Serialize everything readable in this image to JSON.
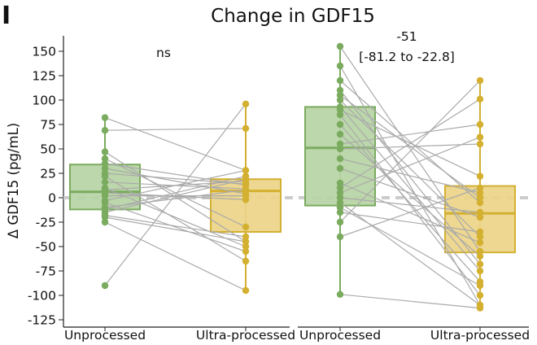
{
  "panel_label": "I",
  "chart_data": {
    "type": "box",
    "title": "Change in GDF15",
    "ylabel": "Δ GDF15 (pg/mL)",
    "ylim": [
      -125,
      160
    ],
    "yticks": [
      150,
      125,
      100,
      75,
      50,
      25,
      0,
      -25,
      -50,
      -75,
      -100,
      -125
    ],
    "reference_line_y": 0,
    "grid": false,
    "colors": {
      "unprocessed_fill": "#b6d4a4",
      "unprocessed_edge": "#7aab5e",
      "unprocessed_point": "#7aab5e",
      "ultra_fill": "#ecd488",
      "ultra_edge": "#d4b030",
      "ultra_point": "#d4b030",
      "pair_line": "#aaaaaa",
      "reference_line": "#cccccc"
    },
    "panels": [
      {
        "categories": [
          "Unprocessed",
          "Ultra-processed"
        ],
        "annotation": [
          "ns"
        ],
        "boxes": [
          {
            "name": "Unprocessed",
            "q1": -12,
            "median": 6,
            "q3": 34,
            "whisker_low": -25,
            "whisker_high": 82
          },
          {
            "name": "Ultra-processed",
            "q1": -35,
            "median": 7,
            "q3": 19,
            "whisker_low": -95,
            "whisker_high": 96
          }
        ],
        "pairs": [
          [
            82,
            28
          ],
          [
            -90,
            96
          ],
          [
            69,
            71
          ],
          [
            47,
            -45
          ],
          [
            40,
            -30
          ],
          [
            35,
            13
          ],
          [
            30,
            4
          ],
          [
            25,
            14
          ],
          [
            22,
            -65
          ],
          [
            16,
            9
          ],
          [
            10,
            -50
          ],
          [
            5,
            -2
          ],
          [
            2,
            2
          ],
          [
            -3,
            28
          ],
          [
            -10,
            8
          ],
          [
            -15,
            19
          ],
          [
            -20,
            -45
          ],
          [
            -25,
            -95
          ],
          [
            -5,
            -55
          ],
          [
            -12,
            22
          ],
          [
            -18,
            -40
          ],
          [
            8,
            17
          ]
        ]
      },
      {
        "categories": [
          "Unprocessed",
          "Ultra-processed"
        ],
        "annotation": [
          "-51",
          "[-81.2 to -22.8]"
        ],
        "boxes": [
          {
            "name": "Unprocessed",
            "q1": -8,
            "median": 51,
            "q3": 93,
            "whisker_low": -99,
            "whisker_high": 155
          },
          {
            "name": "Ultra-processed",
            "q1": -56,
            "median": -16,
            "q3": 12,
            "whisker_low": -113,
            "whisker_high": 120
          }
        ],
        "pairs": [
          [
            155,
            -55
          ],
          [
            135,
            -110
          ],
          [
            120,
            -5
          ],
          [
            110,
            -68
          ],
          [
            105,
            0
          ],
          [
            100,
            -40
          ],
          [
            93,
            -75
          ],
          [
            90,
            22
          ],
          [
            85,
            -100
          ],
          [
            75,
            -86
          ],
          [
            65,
            -60
          ],
          [
            55,
            75
          ],
          [
            50,
            55
          ],
          [
            40,
            5
          ],
          [
            30,
            -20
          ],
          [
            15,
            -46
          ],
          [
            10,
            101
          ],
          [
            5,
            62
          ],
          [
            0,
            -15
          ],
          [
            -5,
            -110
          ],
          [
            -10,
            -90
          ],
          [
            -15,
            -35
          ],
          [
            -25,
            120
          ],
          [
            -40,
            10
          ],
          [
            -99,
            -113
          ]
        ]
      }
    ]
  }
}
